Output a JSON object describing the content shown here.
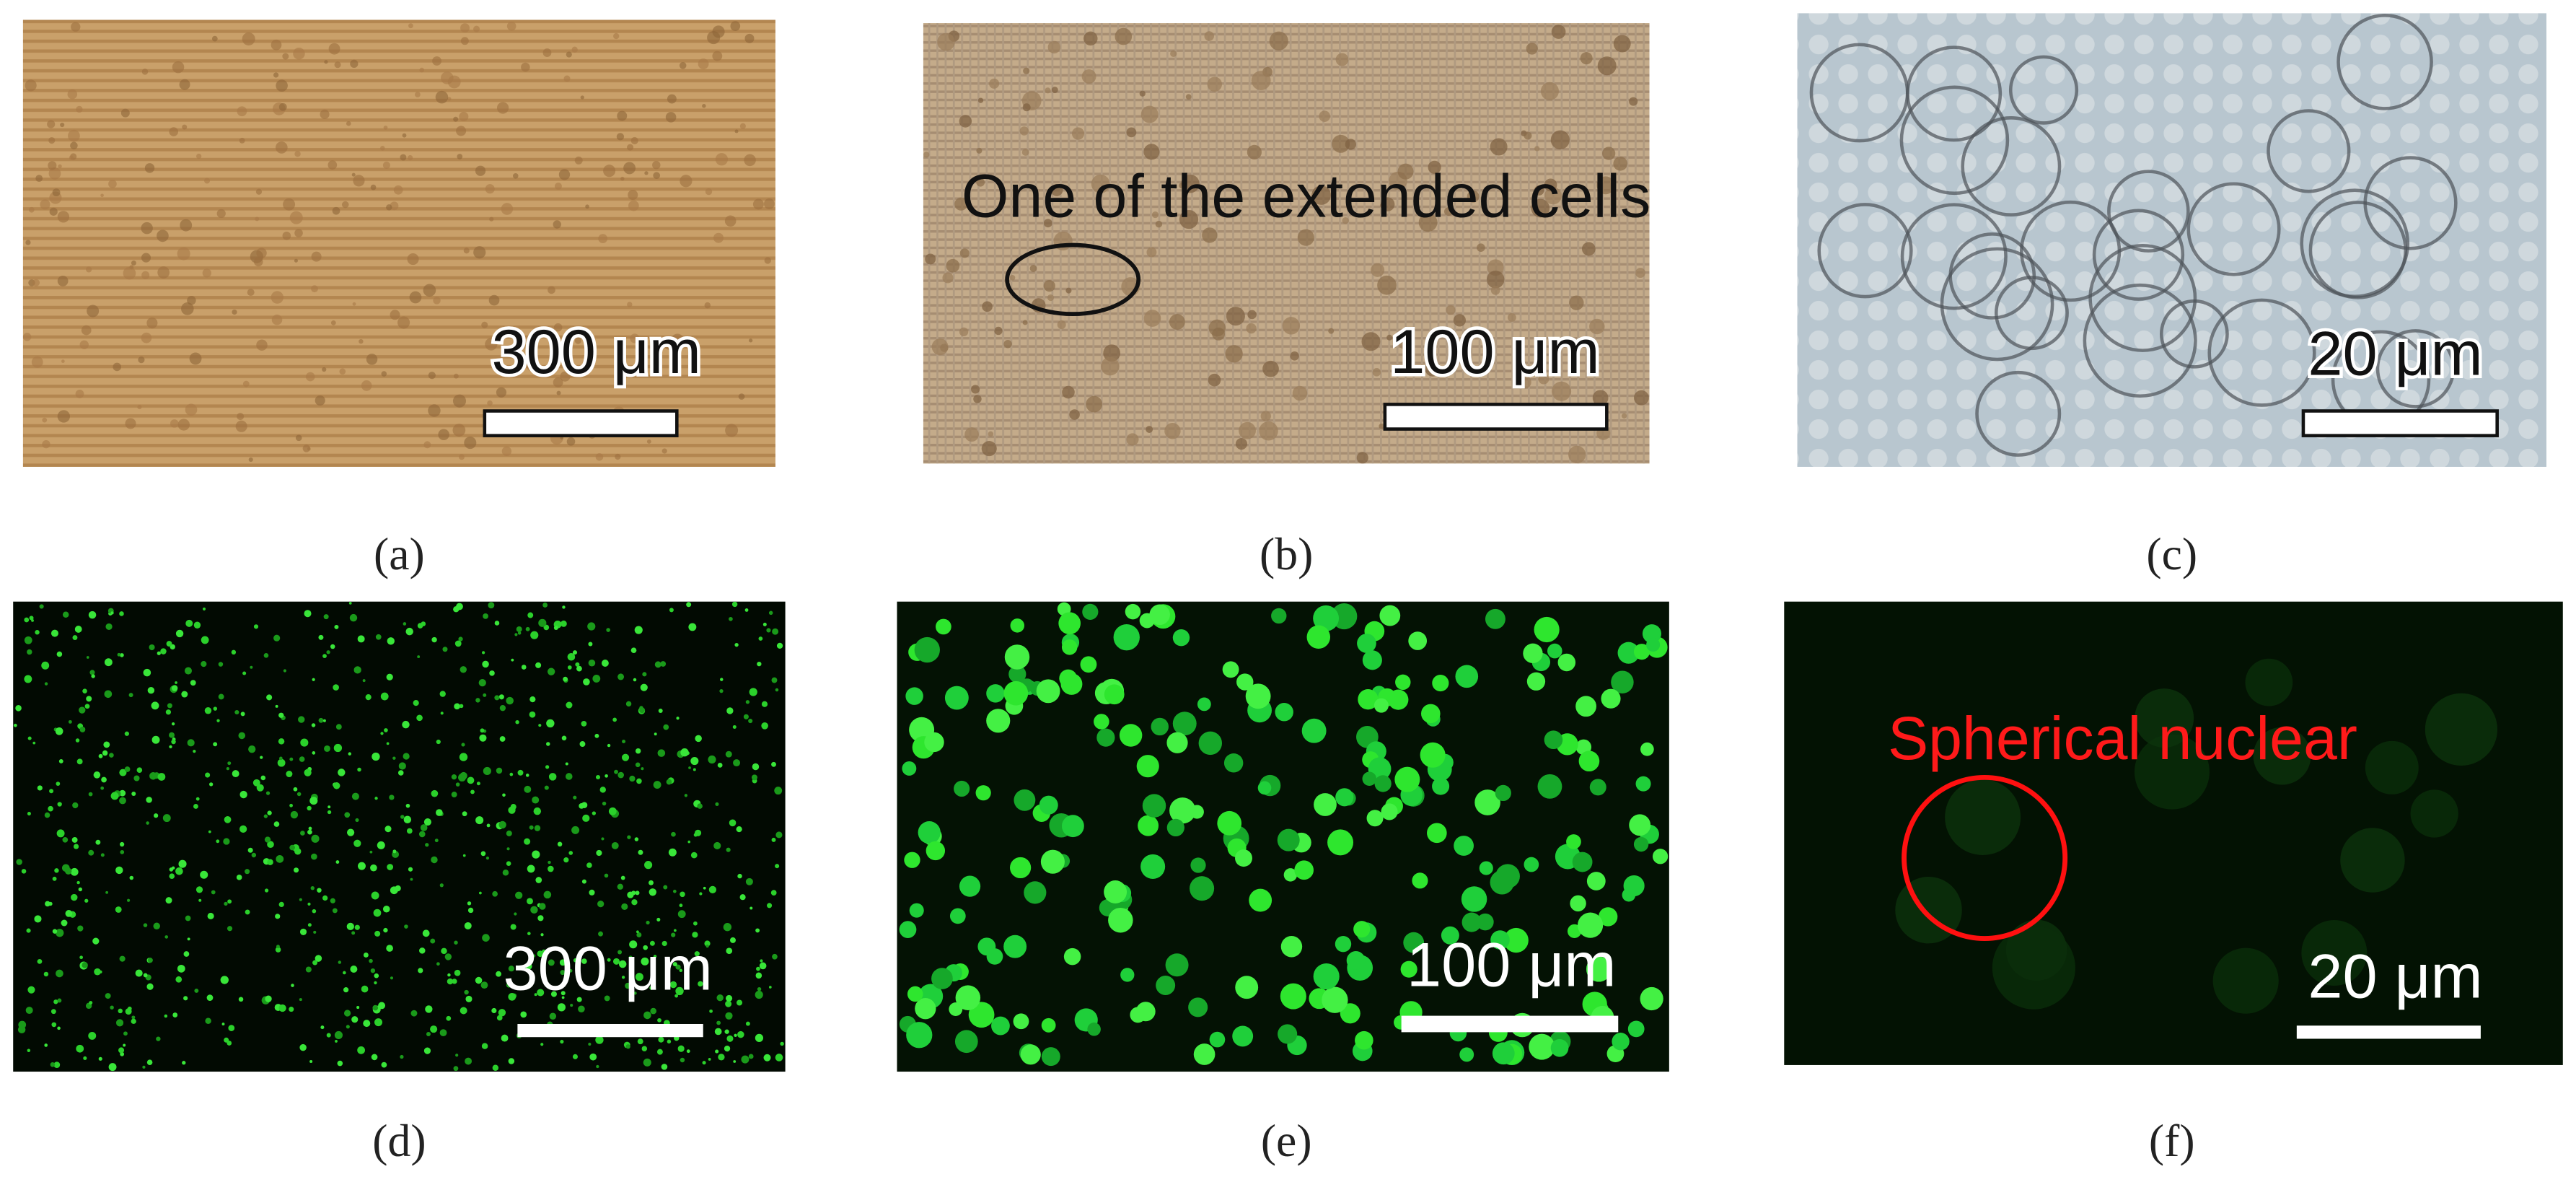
{
  "panels": [
    {
      "label": "(a)",
      "scale_bar": "300 μm"
    },
    {
      "label": "(b)",
      "scale_bar": "100 μm",
      "annotation": "One of the extended cells"
    },
    {
      "label": "(c)",
      "scale_bar": "20 μm"
    },
    {
      "label": "(d)",
      "scale_bar": "300 μm"
    },
    {
      "label": "(e)",
      "scale_bar": "100 μm"
    },
    {
      "label": "(f)",
      "scale_bar": "20 μm",
      "annotation": "Spherical nuclear"
    }
  ]
}
